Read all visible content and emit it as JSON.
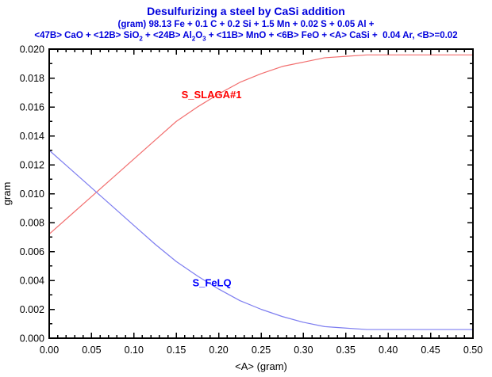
{
  "chart_data": {
    "type": "line",
    "title": "Desulfurizing a steel by CaSi addition",
    "subtitle_line1": "(gram) 98.13 Fe + 0.1 C + 0.2 Si + 1.5 Mn + 0.02 S + 0.05 Al +",
    "subtitle_line2": "<47B> CaO + <12B> SiO2 + <24B> Al2O3 + <11B> MnO + <6B> FeO + <A> CaSi +  0.04 Ar, <B>=0.02",
    "subtitle_line2_segments": [
      {
        "text": "<47B> CaO + <12B> SiO"
      },
      {
        "text": "2",
        "sub": true
      },
      {
        "text": " + <24B> Al"
      },
      {
        "text": "2",
        "sub": true
      },
      {
        "text": "O"
      },
      {
        "text": "3",
        "sub": true
      },
      {
        "text": " + <11B> MnO + <6B> FeO + <A> CaSi +  0.04 Ar, <B>=0.02"
      }
    ],
    "xlabel": "<A> (gram)",
    "ylabel": "gram",
    "xlim": [
      0,
      0.5
    ],
    "ylim": [
      0,
      0.02
    ],
    "x_major_step": 0.05,
    "x_minor_step": 0.01,
    "y_major_step": 0.002,
    "y_minor_step": 0.001,
    "grid": false,
    "legend": "inline curve labels",
    "tick_style": "inward, mirrored on top and right axes",
    "x_tick_labels": [
      "0.00",
      "0.05",
      "0.10",
      "0.15",
      "0.20",
      "0.25",
      "0.30",
      "0.35",
      "0.40",
      "0.45",
      "0.50"
    ],
    "y_tick_labels": [
      "0.000",
      "0.002",
      "0.004",
      "0.006",
      "0.008",
      "0.010",
      "0.012",
      "0.014",
      "0.016",
      "0.018",
      "0.020"
    ],
    "x": [
      0,
      0.025,
      0.05,
      0.075,
      0.1,
      0.125,
      0.15,
      0.175,
      0.2,
      0.225,
      0.25,
      0.275,
      0.3,
      0.325,
      0.35,
      0.375,
      0.4,
      0.425,
      0.45,
      0.475,
      0.5
    ],
    "series": [
      {
        "name": "S_SLAGA#1",
        "slug": "s-slaga1",
        "line_color": "#f26f6f",
        "label_color": "#ff0000",
        "label_pos": {
          "x": 0.156,
          "y": 0.0166
        },
        "values": [
          0.0072,
          0.0085,
          0.0098,
          0.0111,
          0.0124,
          0.0137,
          0.015,
          0.016,
          0.0169,
          0.0177,
          0.0183,
          0.0188,
          0.0191,
          0.0194,
          0.0195,
          0.0196,
          0.0196,
          0.0196,
          0.0196,
          0.0196,
          0.0196
        ]
      },
      {
        "name": "S_FeLQ",
        "slug": "s-felq",
        "line_color": "#7d7df0",
        "label_color": "#0000ff",
        "label_pos": {
          "x": 0.169,
          "y": 0.0036
        },
        "values": [
          0.013,
          0.0117,
          0.0104,
          0.0091,
          0.0078,
          0.0065,
          0.0053,
          0.0043,
          0.0034,
          0.0026,
          0.002,
          0.0015,
          0.0011,
          0.0008,
          0.0007,
          0.0006,
          0.0006,
          0.0006,
          0.0006,
          0.0006,
          0.0006
        ]
      }
    ],
    "crossing_point": {
      "x": 0.056,
      "y": 0.01
    },
    "axis_color": "#000000",
    "text_color": "#000000",
    "title_color": "#0000dd",
    "background": "#ffffff"
  }
}
